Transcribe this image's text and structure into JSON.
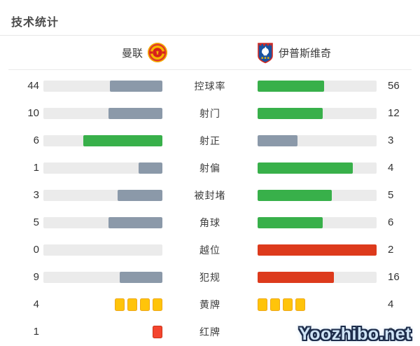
{
  "title": "技术统计",
  "teams": {
    "home": {
      "name": "曼联"
    },
    "away": {
      "name": "伊普斯维奇"
    }
  },
  "colors": {
    "green": "#38b04a",
    "gray": "#8b99a9",
    "red": "#dd3a1c",
    "track": "#ebebeb",
    "yellow_card": "#ffc40a",
    "red_card": "#f4442e"
  },
  "rows": [
    {
      "label": "控球率",
      "type": "bar",
      "left": {
        "value": "44",
        "fill": "gray"
      },
      "right": {
        "value": "56",
        "fill": "green"
      }
    },
    {
      "label": "射门",
      "type": "bar",
      "left": {
        "value": "10",
        "fill": "gray"
      },
      "right": {
        "value": "12",
        "fill": "green"
      }
    },
    {
      "label": "射正",
      "type": "bar",
      "left": {
        "value": "6",
        "fill": "green"
      },
      "right": {
        "value": "3",
        "fill": "gray"
      }
    },
    {
      "label": "射偏",
      "type": "bar",
      "left": {
        "value": "1",
        "fill": "gray"
      },
      "right": {
        "value": "4",
        "fill": "green"
      }
    },
    {
      "label": "被封堵",
      "type": "bar",
      "left": {
        "value": "3",
        "fill": "gray"
      },
      "right": {
        "value": "5",
        "fill": "green"
      }
    },
    {
      "label": "角球",
      "type": "bar",
      "left": {
        "value": "5",
        "fill": "gray"
      },
      "right": {
        "value": "6",
        "fill": "green"
      }
    },
    {
      "label": "越位",
      "type": "bar",
      "left": {
        "value": "0",
        "fill": "gray"
      },
      "right": {
        "value": "2",
        "fill": "red"
      }
    },
    {
      "label": "犯规",
      "type": "bar",
      "left": {
        "value": "9",
        "fill": "gray"
      },
      "right": {
        "value": "16",
        "fill": "red"
      }
    },
    {
      "label": "黄牌",
      "type": "cards",
      "card": "yellow",
      "left": {
        "value": "4",
        "count": 4
      },
      "right": {
        "value": "4",
        "count": 4
      }
    },
    {
      "label": "红牌",
      "type": "cards",
      "card": "red",
      "left": {
        "value": "1",
        "count": 1
      },
      "right": {
        "value": "0",
        "count": 0
      }
    }
  ],
  "watermark": "Yoozhibo.net"
}
